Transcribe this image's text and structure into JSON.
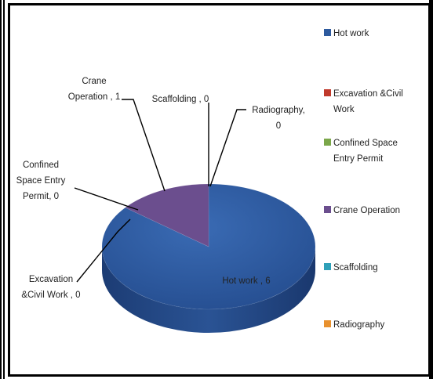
{
  "chart_data": {
    "type": "pie",
    "title": "",
    "categories": [
      "Hot work",
      "Excavation &Civil Work",
      "Confined Space Entry Permit",
      "Crane Operation",
      "Scaffolding",
      "Radiography"
    ],
    "values": [
      6,
      0,
      0,
      1,
      0,
      0
    ],
    "colors": [
      "#2E5A9E",
      "#C0392B",
      "#7BA74A",
      "#6B4E8E",
      "#2FA0B8",
      "#E8912E"
    ],
    "legend_position": "right",
    "data_labels": [
      {
        "category": "Hot work",
        "lines": [
          "Hot work , 6"
        ]
      },
      {
        "category": "Excavation &Civil Work",
        "lines": [
          "Excavation",
          "&Civil Work , 0"
        ]
      },
      {
        "category": "Confined Space Entry Permit",
        "lines": [
          "Confined",
          "Space Entry",
          "Permit, 0"
        ]
      },
      {
        "category": "Crane Operation",
        "lines": [
          "Crane",
          "Operation , 1"
        ]
      },
      {
        "category": "Scaffolding",
        "lines": [
          "Scaffolding , 0"
        ]
      },
      {
        "category": "Radiography",
        "lines": [
          "Radiography,",
          "0"
        ]
      }
    ],
    "legend": [
      {
        "lines": [
          "Hot work"
        ]
      },
      {
        "lines": [
          "Excavation &Civil",
          "Work"
        ]
      },
      {
        "lines": [
          "Confined Space",
          "Entry Permit"
        ]
      },
      {
        "lines": [
          "Crane Operation"
        ]
      },
      {
        "lines": [
          "Scaffolding"
        ]
      },
      {
        "lines": [
          "Radiography"
        ]
      }
    ]
  }
}
